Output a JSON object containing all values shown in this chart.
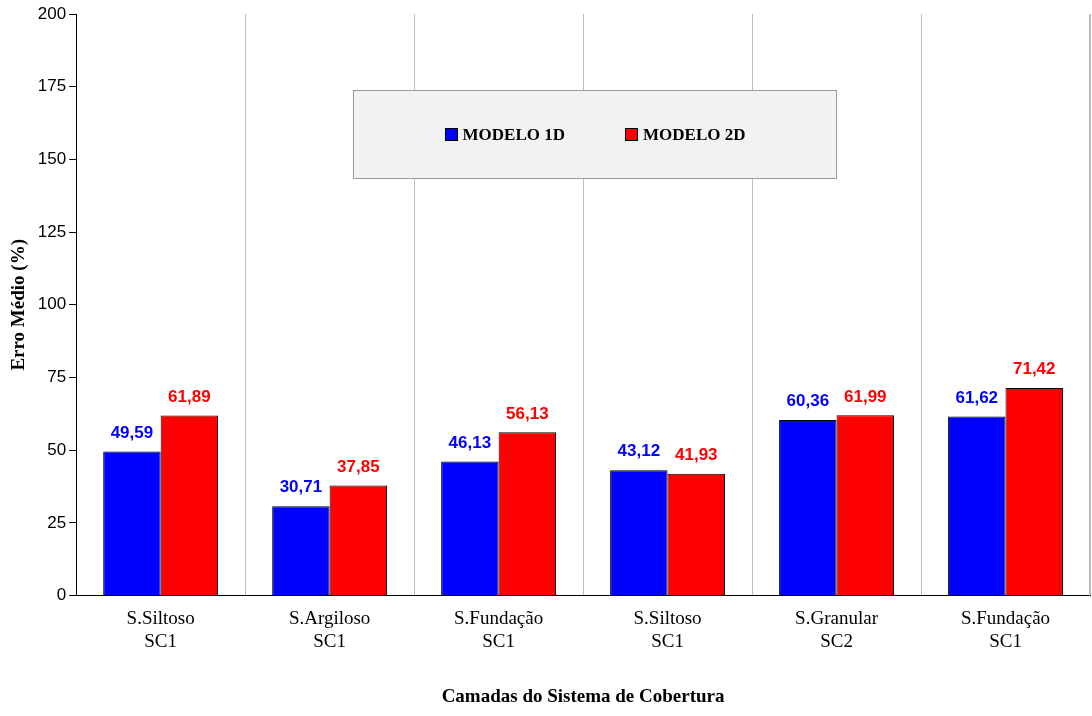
{
  "chart_data": {
    "type": "bar",
    "xlabel": "Camadas do Sistema de Cobertura",
    "ylabel": "Erro Médio (%)",
    "categories": [
      "S.Siltoso SC1",
      "S.Argiloso SC1",
      "S.Fundação SC1",
      "S.Siltoso SC1",
      "S.Granular SC2",
      "S.Fundação SC1"
    ],
    "series": [
      {
        "name": "MODELO 1D",
        "color": "#0000ff",
        "values": [
          49.59,
          30.71,
          46.13,
          43.12,
          60.36,
          61.62
        ],
        "value_labels": [
          "49,59",
          "30,71",
          "46,13",
          "43,12",
          "60,36",
          "61,62"
        ]
      },
      {
        "name": "MODELO 2D",
        "color": "#ff0000",
        "values": [
          61.89,
          37.85,
          56.13,
          41.93,
          61.99,
          71.42
        ],
        "value_labels": [
          "61,89",
          "37,85",
          "56,13",
          "41,93",
          "61,99",
          "71,42"
        ]
      }
    ],
    "ylim": [
      0,
      200
    ],
    "yticks": [
      0,
      25,
      50,
      75,
      100,
      125,
      150,
      175,
      200
    ],
    "grid": "x",
    "legend": "top"
  }
}
